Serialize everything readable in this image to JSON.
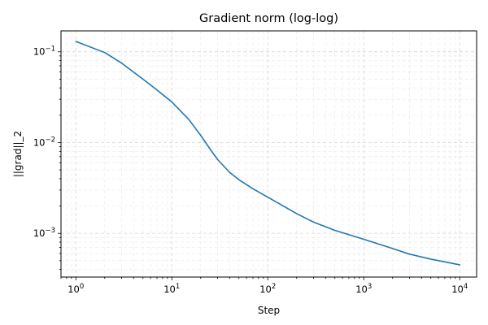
{
  "chart_data": {
    "type": "line",
    "title": "Gradient norm (log-log)",
    "xlabel": "Step",
    "ylabel": "||grad||_2",
    "xscale": "log",
    "yscale": "log",
    "xlim": [
      0.7,
      15000
    ],
    "ylim": [
      0.00033,
      0.17
    ],
    "grid": true,
    "grid_style": "dashed",
    "x_ticks": [
      {
        "value": 1,
        "base": "10",
        "exp": "0"
      },
      {
        "value": 10,
        "base": "10",
        "exp": "1"
      },
      {
        "value": 100,
        "base": "10",
        "exp": "2"
      },
      {
        "value": 1000,
        "base": "10",
        "exp": "3"
      },
      {
        "value": 10000,
        "base": "10",
        "exp": "4"
      }
    ],
    "y_ticks": [
      {
        "value": 0.001,
        "base": "10",
        "exp": "−3"
      },
      {
        "value": 0.01,
        "base": "10",
        "exp": "−2"
      },
      {
        "value": 0.1,
        "base": "10",
        "exp": "−1"
      }
    ],
    "series": [
      {
        "color": "#1f77b4",
        "x": [
          1,
          2,
          3,
          5,
          7,
          10,
          15,
          20,
          25,
          30,
          40,
          50,
          70,
          100,
          200,
          300,
          500,
          1000,
          2000,
          3000,
          5000,
          10000
        ],
        "y": [
          0.13,
          0.098,
          0.075,
          0.05,
          0.038,
          0.028,
          0.018,
          0.012,
          0.0085,
          0.0065,
          0.0047,
          0.0039,
          0.0031,
          0.0025,
          0.00165,
          0.00133,
          0.00108,
          0.00086,
          0.00068,
          0.00059,
          0.00052,
          0.00045
        ]
      }
    ]
  }
}
